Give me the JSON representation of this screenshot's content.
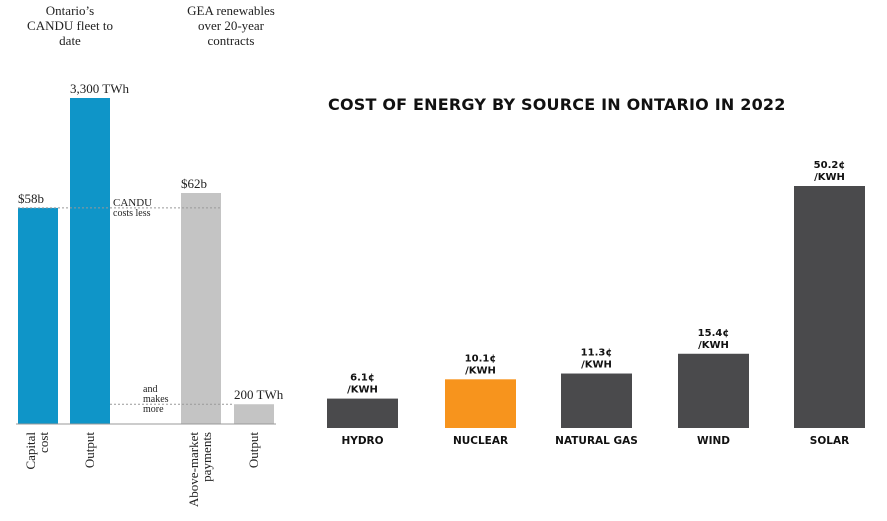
{
  "left_panel": {
    "group_headers": [
      "Ontario’s CANDU fleet to date",
      "GEA renewables over 20-year contracts"
    ],
    "annotations": {
      "candu_costs_less": [
        "CANDU",
        "costs less"
      ],
      "and_makes_more": [
        "and",
        "makes",
        "more"
      ]
    }
  },
  "right_panel": {
    "title": "COST OF ENERGY BY SOURCE IN ONTARIO IN 2022"
  },
  "chart_data": [
    {
      "type": "bar",
      "title": "",
      "groups": [
        {
          "header": "Ontario’s CANDU fleet to date",
          "bars": [
            {
              "category": "Capital cost",
              "value": 58,
              "unit": "billion dollars",
              "label": "$58b",
              "color": "#0f95c8"
            },
            {
              "category": "Output",
              "value": 3300,
              "unit": "TWh",
              "label": "3,300 TWh",
              "color": "#0f95c8"
            }
          ]
        },
        {
          "header": "GEA renewables over 20-year contracts",
          "bars": [
            {
              "category": "Above-market payments",
              "value": 62,
              "unit": "billion dollars",
              "label": "$62b",
              "color": "#c4c4c4"
            },
            {
              "category": "Output",
              "value": 200,
              "unit": "TWh",
              "label": "200 TWh",
              "color": "#c4c4c4"
            }
          ]
        }
      ],
      "annotations": [
        "CANDU costs less",
        "and makes more"
      ],
      "grid": false,
      "legend": "none"
    },
    {
      "type": "bar",
      "title": "COST OF ENERGY BY SOURCE IN ONTARIO IN 2022",
      "unit": "¢/KWH",
      "categories": [
        "HYDRO",
        "NUCLEAR",
        "NATURAL GAS",
        "WIND",
        "SOLAR"
      ],
      "values": [
        6.1,
        10.1,
        11.3,
        15.4,
        50.2
      ],
      "data_labels": [
        [
          "6.1¢",
          "/KWH"
        ],
        [
          "10.1¢",
          "/KWH"
        ],
        [
          "11.3¢",
          "/KWH"
        ],
        [
          "15.4¢",
          "/KWH"
        ],
        [
          "50.2¢",
          "/KWH"
        ]
      ],
      "colors": [
        "#4a4a4c",
        "#f7941d",
        "#4a4a4c",
        "#4a4a4c",
        "#4a4a4c"
      ],
      "ylim": [
        0,
        50.2
      ],
      "grid": false,
      "legend": "none"
    }
  ]
}
